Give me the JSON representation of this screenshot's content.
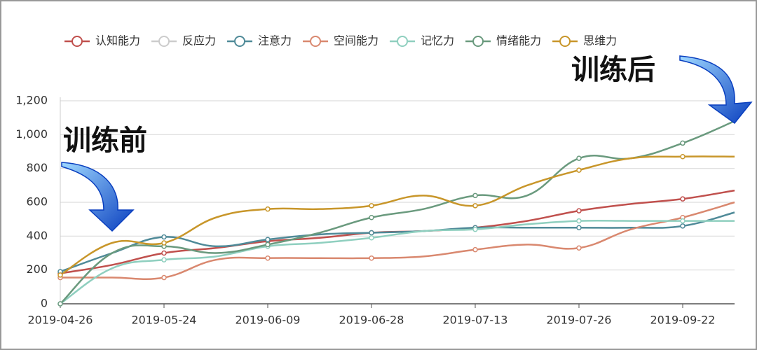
{
  "chart_data": {
    "type": "line",
    "annotations": [
      "训练前",
      "训练后"
    ],
    "categories": [
      "2019-04-26",
      null,
      "2019-05-24",
      null,
      "2019-06-09",
      null,
      "2019-06-28",
      null,
      "2019-07-13",
      null,
      "2019-07-26",
      null,
      "2019-09-22",
      null
    ],
    "series": [
      {
        "name": "认知能力",
        "color": "#c0504d",
        "values": [
          180,
          230,
          300,
          330,
          370,
          390,
          420,
          430,
          450,
          490,
          550,
          590,
          620,
          670
        ]
      },
      {
        "name": "反应力",
        "color": "#cccccc",
        "hidden": true,
        "values": [
          null,
          null,
          null,
          null,
          null,
          null,
          null,
          null,
          null,
          null,
          null,
          null,
          null,
          null
        ]
      },
      {
        "name": "注意力",
        "color": "#4f8a98",
        "values": [
          190,
          300,
          395,
          340,
          380,
          410,
          420,
          430,
          450,
          450,
          450,
          450,
          460,
          540
        ]
      },
      {
        "name": "空间能力",
        "color": "#d9886f",
        "values": [
          155,
          155,
          155,
          260,
          270,
          270,
          270,
          280,
          320,
          350,
          330,
          440,
          510,
          600
        ]
      },
      {
        "name": "记忆力",
        "color": "#8fcfbf",
        "values": [
          0,
          210,
          260,
          280,
          340,
          360,
          390,
          430,
          440,
          470,
          490,
          490,
          490,
          490
        ]
      },
      {
        "name": "情绪能力",
        "color": "#6a9a7e",
        "values": [
          0,
          300,
          340,
          300,
          350,
          420,
          510,
          560,
          640,
          640,
          860,
          860,
          950,
          1080
        ]
      },
      {
        "name": "思维力",
        "color": "#c8962a",
        "values": [
          170,
          360,
          360,
          510,
          560,
          560,
          580,
          640,
          580,
          700,
          790,
          860,
          870,
          870
        ]
      }
    ],
    "ylim": [
      0,
      1200
    ],
    "yticks": [
      0,
      200,
      400,
      600,
      800,
      {
        "value": 1000,
        "label": "1,000"
      },
      {
        "value": 1200,
        "label": "1,200"
      }
    ],
    "grid": true
  }
}
